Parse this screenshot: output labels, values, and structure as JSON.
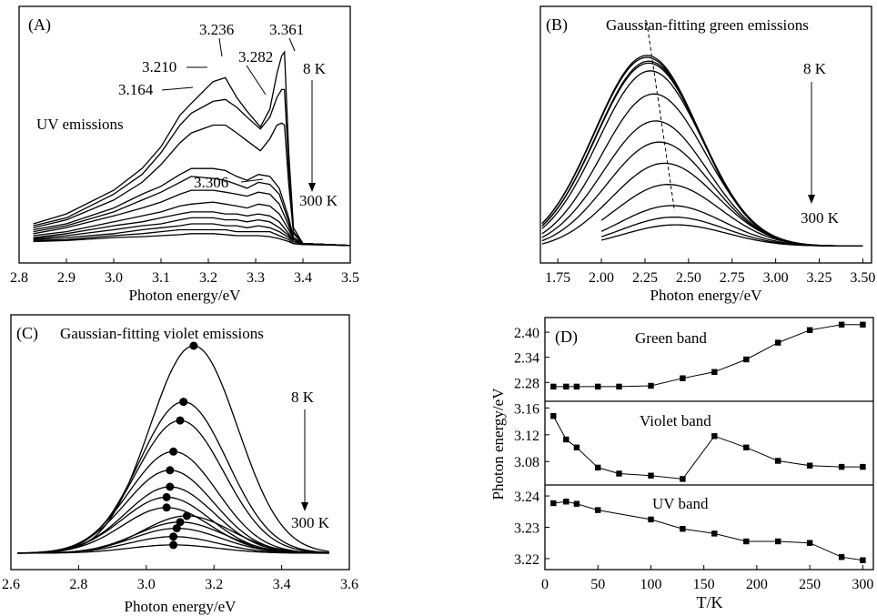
{
  "chart_data": [
    {
      "panel": "(A)",
      "type": "line",
      "title": "UV emissions",
      "xlabel": "Photon energy/eV",
      "xlim": [
        2.8,
        3.5
      ],
      "x_ticks": [
        "2.8",
        "2.9",
        "3.0",
        "3.1",
        "3.2",
        "3.3",
        "3.4",
        "3.5"
      ],
      "temp_high": "8 K",
      "temp_low": "300 K",
      "peak_labels": [
        "3.236",
        "3.361",
        "3.282",
        "3.210",
        "3.164",
        "3.306"
      ],
      "series": [
        {
          "x": [
            2.83,
            2.9,
            3.0,
            3.06,
            3.1,
            3.14,
            3.164,
            3.21,
            3.236,
            3.26,
            3.282,
            3.31,
            3.33,
            3.345,
            3.355,
            3.361,
            3.37,
            3.38,
            3.4,
            3.5
          ],
          "values": [
            0.12,
            0.17,
            0.29,
            0.4,
            0.51,
            0.67,
            0.73,
            0.84,
            0.86,
            0.76,
            0.69,
            0.61,
            0.7,
            0.88,
            0.97,
            0.99,
            0.48,
            0.1,
            0.02,
            0.01
          ]
        },
        {
          "x": [
            2.83,
            2.9,
            3.0,
            3.06,
            3.1,
            3.14,
            3.164,
            3.21,
            3.236,
            3.26,
            3.282,
            3.31,
            3.33,
            3.345,
            3.355,
            3.361,
            3.37,
            3.38,
            3.4,
            3.5
          ],
          "values": [
            0.11,
            0.15,
            0.27,
            0.37,
            0.48,
            0.62,
            0.68,
            0.74,
            0.75,
            0.71,
            0.66,
            0.6,
            0.66,
            0.76,
            0.8,
            0.8,
            0.4,
            0.08,
            0.02,
            0.01
          ]
        },
        {
          "x": [
            2.83,
            2.9,
            3.0,
            3.06,
            3.1,
            3.14,
            3.164,
            3.21,
            3.236,
            3.26,
            3.282,
            3.31,
            3.33,
            3.345,
            3.355,
            3.361,
            3.37,
            3.38,
            3.4,
            3.5
          ],
          "values": [
            0.1,
            0.14,
            0.24,
            0.33,
            0.42,
            0.53,
            0.58,
            0.62,
            0.62,
            0.58,
            0.54,
            0.49,
            0.55,
            0.62,
            0.63,
            0.62,
            0.32,
            0.07,
            0.02,
            0.01
          ]
        },
        {
          "x": [
            2.83,
            2.9,
            3.0,
            3.06,
            3.1,
            3.14,
            3.164,
            3.21,
            3.236,
            3.26,
            3.282,
            3.306,
            3.33,
            3.35,
            3.37,
            3.38,
            3.4,
            3.5
          ],
          "values": [
            0.09,
            0.12,
            0.2,
            0.27,
            0.31,
            0.37,
            0.4,
            0.4,
            0.39,
            0.36,
            0.34,
            0.37,
            0.36,
            0.3,
            0.15,
            0.05,
            0.02,
            0.01
          ]
        },
        {
          "x": [
            2.83,
            2.9,
            3.0,
            3.06,
            3.1,
            3.14,
            3.164,
            3.21,
            3.236,
            3.26,
            3.282,
            3.306,
            3.33,
            3.35,
            3.37,
            3.38,
            3.4,
            3.5
          ],
          "values": [
            0.08,
            0.11,
            0.18,
            0.24,
            0.28,
            0.33,
            0.36,
            0.35,
            0.34,
            0.32,
            0.3,
            0.33,
            0.32,
            0.27,
            0.13,
            0.05,
            0.02,
            0.01
          ]
        },
        {
          "x": [
            2.83,
            2.9,
            3.0,
            3.06,
            3.1,
            3.14,
            3.164,
            3.21,
            3.236,
            3.26,
            3.282,
            3.306,
            3.33,
            3.35,
            3.37,
            3.38,
            3.4,
            3.5
          ],
          "values": [
            0.07,
            0.1,
            0.16,
            0.2,
            0.23,
            0.27,
            0.29,
            0.29,
            0.28,
            0.27,
            0.26,
            0.28,
            0.27,
            0.22,
            0.11,
            0.04,
            0.02,
            0.01
          ]
        },
        {
          "x": [
            2.83,
            2.9,
            3.0,
            3.06,
            3.1,
            3.14,
            3.164,
            3.21,
            3.236,
            3.26,
            3.282,
            3.306,
            3.33,
            3.35,
            3.37,
            3.38,
            3.4,
            3.5
          ],
          "values": [
            0.06,
            0.08,
            0.13,
            0.16,
            0.18,
            0.21,
            0.22,
            0.23,
            0.22,
            0.21,
            0.2,
            0.22,
            0.21,
            0.17,
            0.09,
            0.04,
            0.02,
            0.01
          ]
        },
        {
          "x": [
            2.83,
            2.9,
            3.0,
            3.06,
            3.1,
            3.14,
            3.164,
            3.21,
            3.236,
            3.26,
            3.282,
            3.306,
            3.33,
            3.35,
            3.37,
            3.38,
            3.4,
            3.5
          ],
          "values": [
            0.05,
            0.07,
            0.11,
            0.13,
            0.15,
            0.17,
            0.18,
            0.18,
            0.17,
            0.17,
            0.16,
            0.17,
            0.16,
            0.13,
            0.07,
            0.03,
            0.02,
            0.01
          ]
        },
        {
          "x": [
            2.83,
            2.9,
            3.0,
            3.06,
            3.1,
            3.14,
            3.164,
            3.21,
            3.236,
            3.26,
            3.282,
            3.306,
            3.33,
            3.35,
            3.37,
            3.38,
            3.4,
            3.5
          ],
          "values": [
            0.045,
            0.06,
            0.09,
            0.11,
            0.12,
            0.14,
            0.15,
            0.15,
            0.14,
            0.14,
            0.13,
            0.14,
            0.13,
            0.1,
            0.06,
            0.03,
            0.02,
            0.01
          ]
        },
        {
          "x": [
            2.83,
            2.9,
            3.0,
            3.06,
            3.1,
            3.14,
            3.164,
            3.21,
            3.236,
            3.26,
            3.282,
            3.306,
            3.33,
            3.35,
            3.37,
            3.38,
            3.4,
            3.5
          ],
          "values": [
            0.04,
            0.05,
            0.07,
            0.09,
            0.1,
            0.11,
            0.12,
            0.12,
            0.11,
            0.11,
            0.1,
            0.11,
            0.1,
            0.08,
            0.05,
            0.03,
            0.02,
            0.01
          ]
        },
        {
          "x": [
            2.83,
            2.9,
            3.0,
            3.06,
            3.1,
            3.14,
            3.164,
            3.21,
            3.236,
            3.26,
            3.282,
            3.306,
            3.33,
            3.35,
            3.37,
            3.38,
            3.4,
            3.5
          ],
          "values": [
            0.035,
            0.04,
            0.06,
            0.07,
            0.08,
            0.09,
            0.09,
            0.09,
            0.09,
            0.08,
            0.08,
            0.08,
            0.08,
            0.06,
            0.04,
            0.02,
            0.015,
            0.01
          ]
        },
        {
          "x": [
            2.83,
            2.9,
            3.0,
            3.06,
            3.1,
            3.14,
            3.164,
            3.21,
            3.236,
            3.26,
            3.282,
            3.306,
            3.33,
            3.35,
            3.37,
            3.38,
            3.4,
            3.5
          ],
          "values": [
            0.03,
            0.035,
            0.05,
            0.055,
            0.06,
            0.065,
            0.07,
            0.07,
            0.065,
            0.06,
            0.06,
            0.06,
            0.055,
            0.045,
            0.03,
            0.02,
            0.015,
            0.01
          ]
        }
      ]
    },
    {
      "panel": "(B)",
      "type": "line",
      "title": "Gaussian-fitting green emissions",
      "xlabel": "Photon energy/eV",
      "xlim": [
        1.65,
        3.55
      ],
      "x_ticks": [
        "1.75",
        "2.00",
        "2.25",
        "2.50",
        "2.75",
        "3.00",
        "3.25",
        "3.50"
      ],
      "temp_high": "8 K",
      "temp_low": "300 K",
      "peak_shift": {
        "from": 2.26,
        "to": 2.42
      },
      "series": [
        {
          "center": 2.26,
          "amplitude": 1.0,
          "start": 1.66
        },
        {
          "center": 2.26,
          "amplitude": 0.99,
          "start": 1.66
        },
        {
          "center": 2.27,
          "amplitude": 0.97,
          "start": 1.66
        },
        {
          "center": 2.27,
          "amplitude": 0.96,
          "start": 1.66
        },
        {
          "center": 2.28,
          "amplitude": 0.92,
          "start": 1.66
        },
        {
          "center": 2.3,
          "amplitude": 0.8,
          "start": 1.66
        },
        {
          "center": 2.31,
          "amplitude": 0.66,
          "start": 1.66
        },
        {
          "center": 2.33,
          "amplitude": 0.55,
          "start": 1.66
        },
        {
          "center": 2.36,
          "amplitude": 0.44,
          "start": 1.66
        },
        {
          "center": 2.38,
          "amplitude": 0.33,
          "start": 2.0
        },
        {
          "center": 2.4,
          "amplitude": 0.22,
          "start": 2.0
        },
        {
          "center": 2.41,
          "amplitude": 0.16,
          "start": 2.0
        },
        {
          "center": 2.42,
          "amplitude": 0.12,
          "start": 2.0
        }
      ]
    },
    {
      "panel": "(C)",
      "type": "line",
      "title": "Gaussian-fitting violet emissions",
      "xlabel": "Photon energy/eV",
      "xlim": [
        2.6,
        3.6
      ],
      "x_ticks": [
        "2.6",
        "2.8",
        "3.0",
        "3.2",
        "3.4",
        "3.6"
      ],
      "temp_high": "8 K",
      "temp_low": "300 K",
      "series": [
        {
          "center": 3.14,
          "amplitude": 1.0
        },
        {
          "center": 3.11,
          "amplitude": 0.73
        },
        {
          "center": 3.1,
          "amplitude": 0.64
        },
        {
          "center": 3.08,
          "amplitude": 0.49
        },
        {
          "center": 3.07,
          "amplitude": 0.4
        },
        {
          "center": 3.07,
          "amplitude": 0.32
        },
        {
          "center": 3.06,
          "amplitude": 0.27
        },
        {
          "center": 3.06,
          "amplitude": 0.22
        },
        {
          "center": 3.12,
          "amplitude": 0.18
        },
        {
          "center": 3.1,
          "amplitude": 0.15
        },
        {
          "center": 3.09,
          "amplitude": 0.12
        },
        {
          "center": 3.08,
          "amplitude": 0.08
        },
        {
          "center": 3.08,
          "amplitude": 0.04
        }
      ]
    },
    {
      "panel": "(D)",
      "type": "line",
      "xlabel": "T/K",
      "ylabel": "Photon energy/eV",
      "xlim": [
        0,
        310
      ],
      "x_ticks": [
        "0",
        "50",
        "100",
        "150",
        "200",
        "250",
        "300"
      ],
      "subplots": [
        {
          "name": "Green band",
          "ylim": [
            2.235,
            2.435
          ],
          "y_ticks": [
            "2.28",
            "2.34",
            "2.40"
          ],
          "x": [
            8,
            20,
            30,
            50,
            70,
            100,
            130,
            160,
            190,
            220,
            250,
            280,
            300
          ],
          "values": [
            2.27,
            2.27,
            2.27,
            2.27,
            2.27,
            2.272,
            2.29,
            2.305,
            2.335,
            2.375,
            2.405,
            2.418,
            2.418
          ]
        },
        {
          "name": "Violet band",
          "ylim": [
            3.045,
            3.17
          ],
          "y_ticks": [
            "3.08",
            "3.12",
            "3.16"
          ],
          "x": [
            8,
            20,
            30,
            50,
            70,
            100,
            130,
            160,
            190,
            220,
            250,
            280,
            300
          ],
          "values": [
            3.148,
            3.113,
            3.101,
            3.071,
            3.062,
            3.059,
            3.054,
            3.118,
            3.101,
            3.081,
            3.074,
            3.072,
            3.072
          ]
        },
        {
          "name": "UV band",
          "ylim": [
            3.2165,
            3.2435
          ],
          "y_ticks": [
            "3.22",
            "3.23",
            "3.24"
          ],
          "x": [
            8,
            20,
            30,
            50,
            100,
            130,
            160,
            190,
            220,
            250,
            280,
            300
          ],
          "values": [
            3.2377,
            3.2382,
            3.2375,
            3.2355,
            3.2325,
            3.2295,
            3.228,
            3.2255,
            3.2255,
            3.225,
            3.2205,
            3.2195
          ]
        }
      ]
    }
  ]
}
